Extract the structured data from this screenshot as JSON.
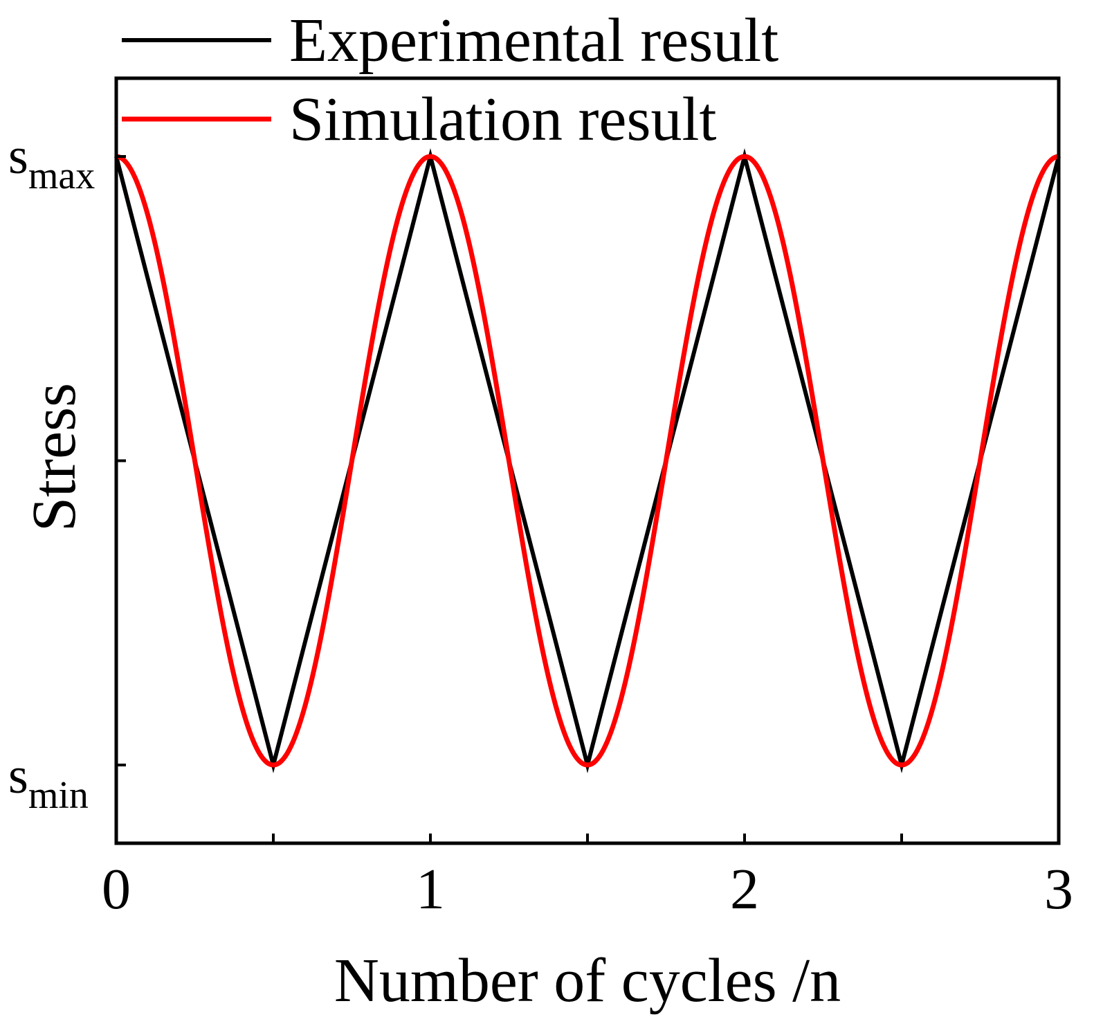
{
  "chart_data": {
    "type": "line",
    "title": "",
    "xlabel": "Number of cycles /n",
    "ylabel": "Stress",
    "xlim": [
      0,
      3
    ],
    "ylim": [
      -1.25,
      1.25
    ],
    "x_ticks": [
      {
        "value": 0,
        "label": "0"
      },
      {
        "value": 0.5,
        "label": ""
      },
      {
        "value": 1,
        "label": "1"
      },
      {
        "value": 1.5,
        "label": ""
      },
      {
        "value": 2,
        "label": "2"
      },
      {
        "value": 2.5,
        "label": ""
      },
      {
        "value": 3,
        "label": "3"
      }
    ],
    "y_ticks": [
      {
        "value": 1,
        "base": "s",
        "sub": "max"
      },
      {
        "value": 0,
        "base": "",
        "sub": ""
      },
      {
        "value": -1,
        "base": "s",
        "sub": "min"
      }
    ],
    "legend": {
      "position": "top-left"
    },
    "series": [
      {
        "name": "Experimental result",
        "color": "#000000",
        "shape": "triangle",
        "x": [
          0,
          0.5,
          1,
          1.5,
          2,
          2.5,
          3
        ],
        "y": [
          1,
          -1,
          1,
          -1,
          1,
          -1,
          1
        ]
      },
      {
        "name": "Simulation result",
        "color": "#ff0000",
        "shape": "cosine",
        "function": "cos(2*pi*x)",
        "x_range": [
          0,
          3
        ],
        "samples": 601
      }
    ],
    "grid": false
  }
}
